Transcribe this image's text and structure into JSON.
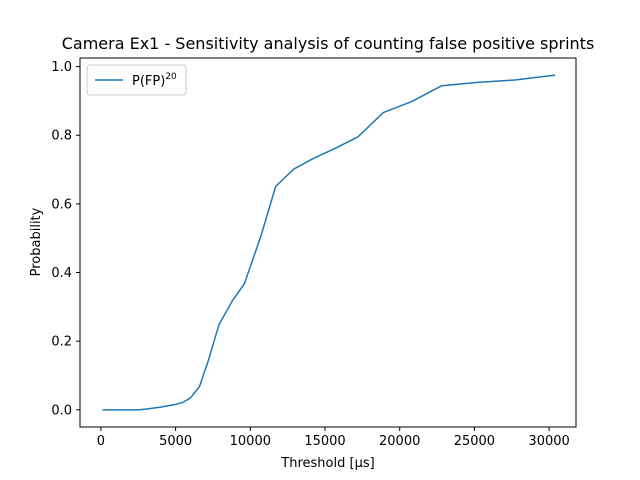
{
  "chart_data": {
    "type": "line",
    "title": "Camera Ex1 - Sensitivity analysis of counting false positive sprints",
    "xlabel": "Threshold [μs]",
    "ylabel": "Probability",
    "xlim": [
      -1400,
      31800
    ],
    "ylim": [
      -0.05,
      1.025
    ],
    "x_ticks": [
      0,
      5000,
      10000,
      15000,
      20000,
      25000,
      30000
    ],
    "x_tick_labels": [
      "0",
      "5000",
      "10000",
      "15000",
      "20000",
      "25000",
      "30000"
    ],
    "y_ticks": [
      0.0,
      0.2,
      0.4,
      0.6,
      0.8,
      1.0
    ],
    "y_tick_labels": [
      "0.0",
      "0.2",
      "0.4",
      "0.6",
      "0.8",
      "1.0"
    ],
    "grid": false,
    "legend_position": "top-left",
    "series": [
      {
        "name": "P(FP)",
        "name_superscript": "20",
        "color": "#1f77b4",
        "x": [
          100,
          1000,
          2000,
          2500,
          3000,
          3500,
          4000,
          4500,
          5000,
          5500,
          6000,
          6600,
          7200,
          7900,
          8800,
          9600,
          10700,
          11700,
          12900,
          14200,
          15600,
          17200,
          18900,
          20800,
          22800,
          25200,
          27700,
          30400
        ],
        "y": [
          0.0,
          0.0,
          0.0,
          0.0,
          0.002,
          0.005,
          0.008,
          0.012,
          0.016,
          0.022,
          0.035,
          0.068,
          0.145,
          0.248,
          0.318,
          0.367,
          0.505,
          0.651,
          0.701,
          0.732,
          0.76,
          0.795,
          0.866,
          0.898,
          0.944,
          0.954,
          0.961,
          0.975
        ]
      }
    ]
  }
}
